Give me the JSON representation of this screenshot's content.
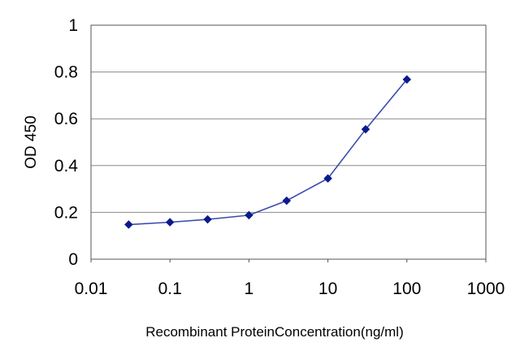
{
  "chart_data": {
    "type": "line",
    "title": "",
    "xlabel": "Recombinant ProteinConcentration(ng/ml)",
    "ylabel": "OD 450",
    "x_scale": "log",
    "xlim": [
      0.01,
      1000
    ],
    "ylim": [
      0,
      1
    ],
    "x_ticks": [
      "0.01",
      "0.1",
      "1",
      "10",
      "100",
      "1000"
    ],
    "y_ticks": [
      "0",
      "0.2",
      "0.4",
      "0.6",
      "0.8",
      "1"
    ],
    "grid": "horizontal",
    "legend": "none",
    "series": [
      {
        "color": "#3a4bb0",
        "marker_color": "#0b1a8c",
        "x": [
          0.03,
          0.1,
          0.3,
          1,
          3,
          10,
          30,
          100
        ],
        "y": [
          0.148,
          0.158,
          0.17,
          0.188,
          0.25,
          0.345,
          0.555,
          0.768
        ]
      }
    ]
  }
}
